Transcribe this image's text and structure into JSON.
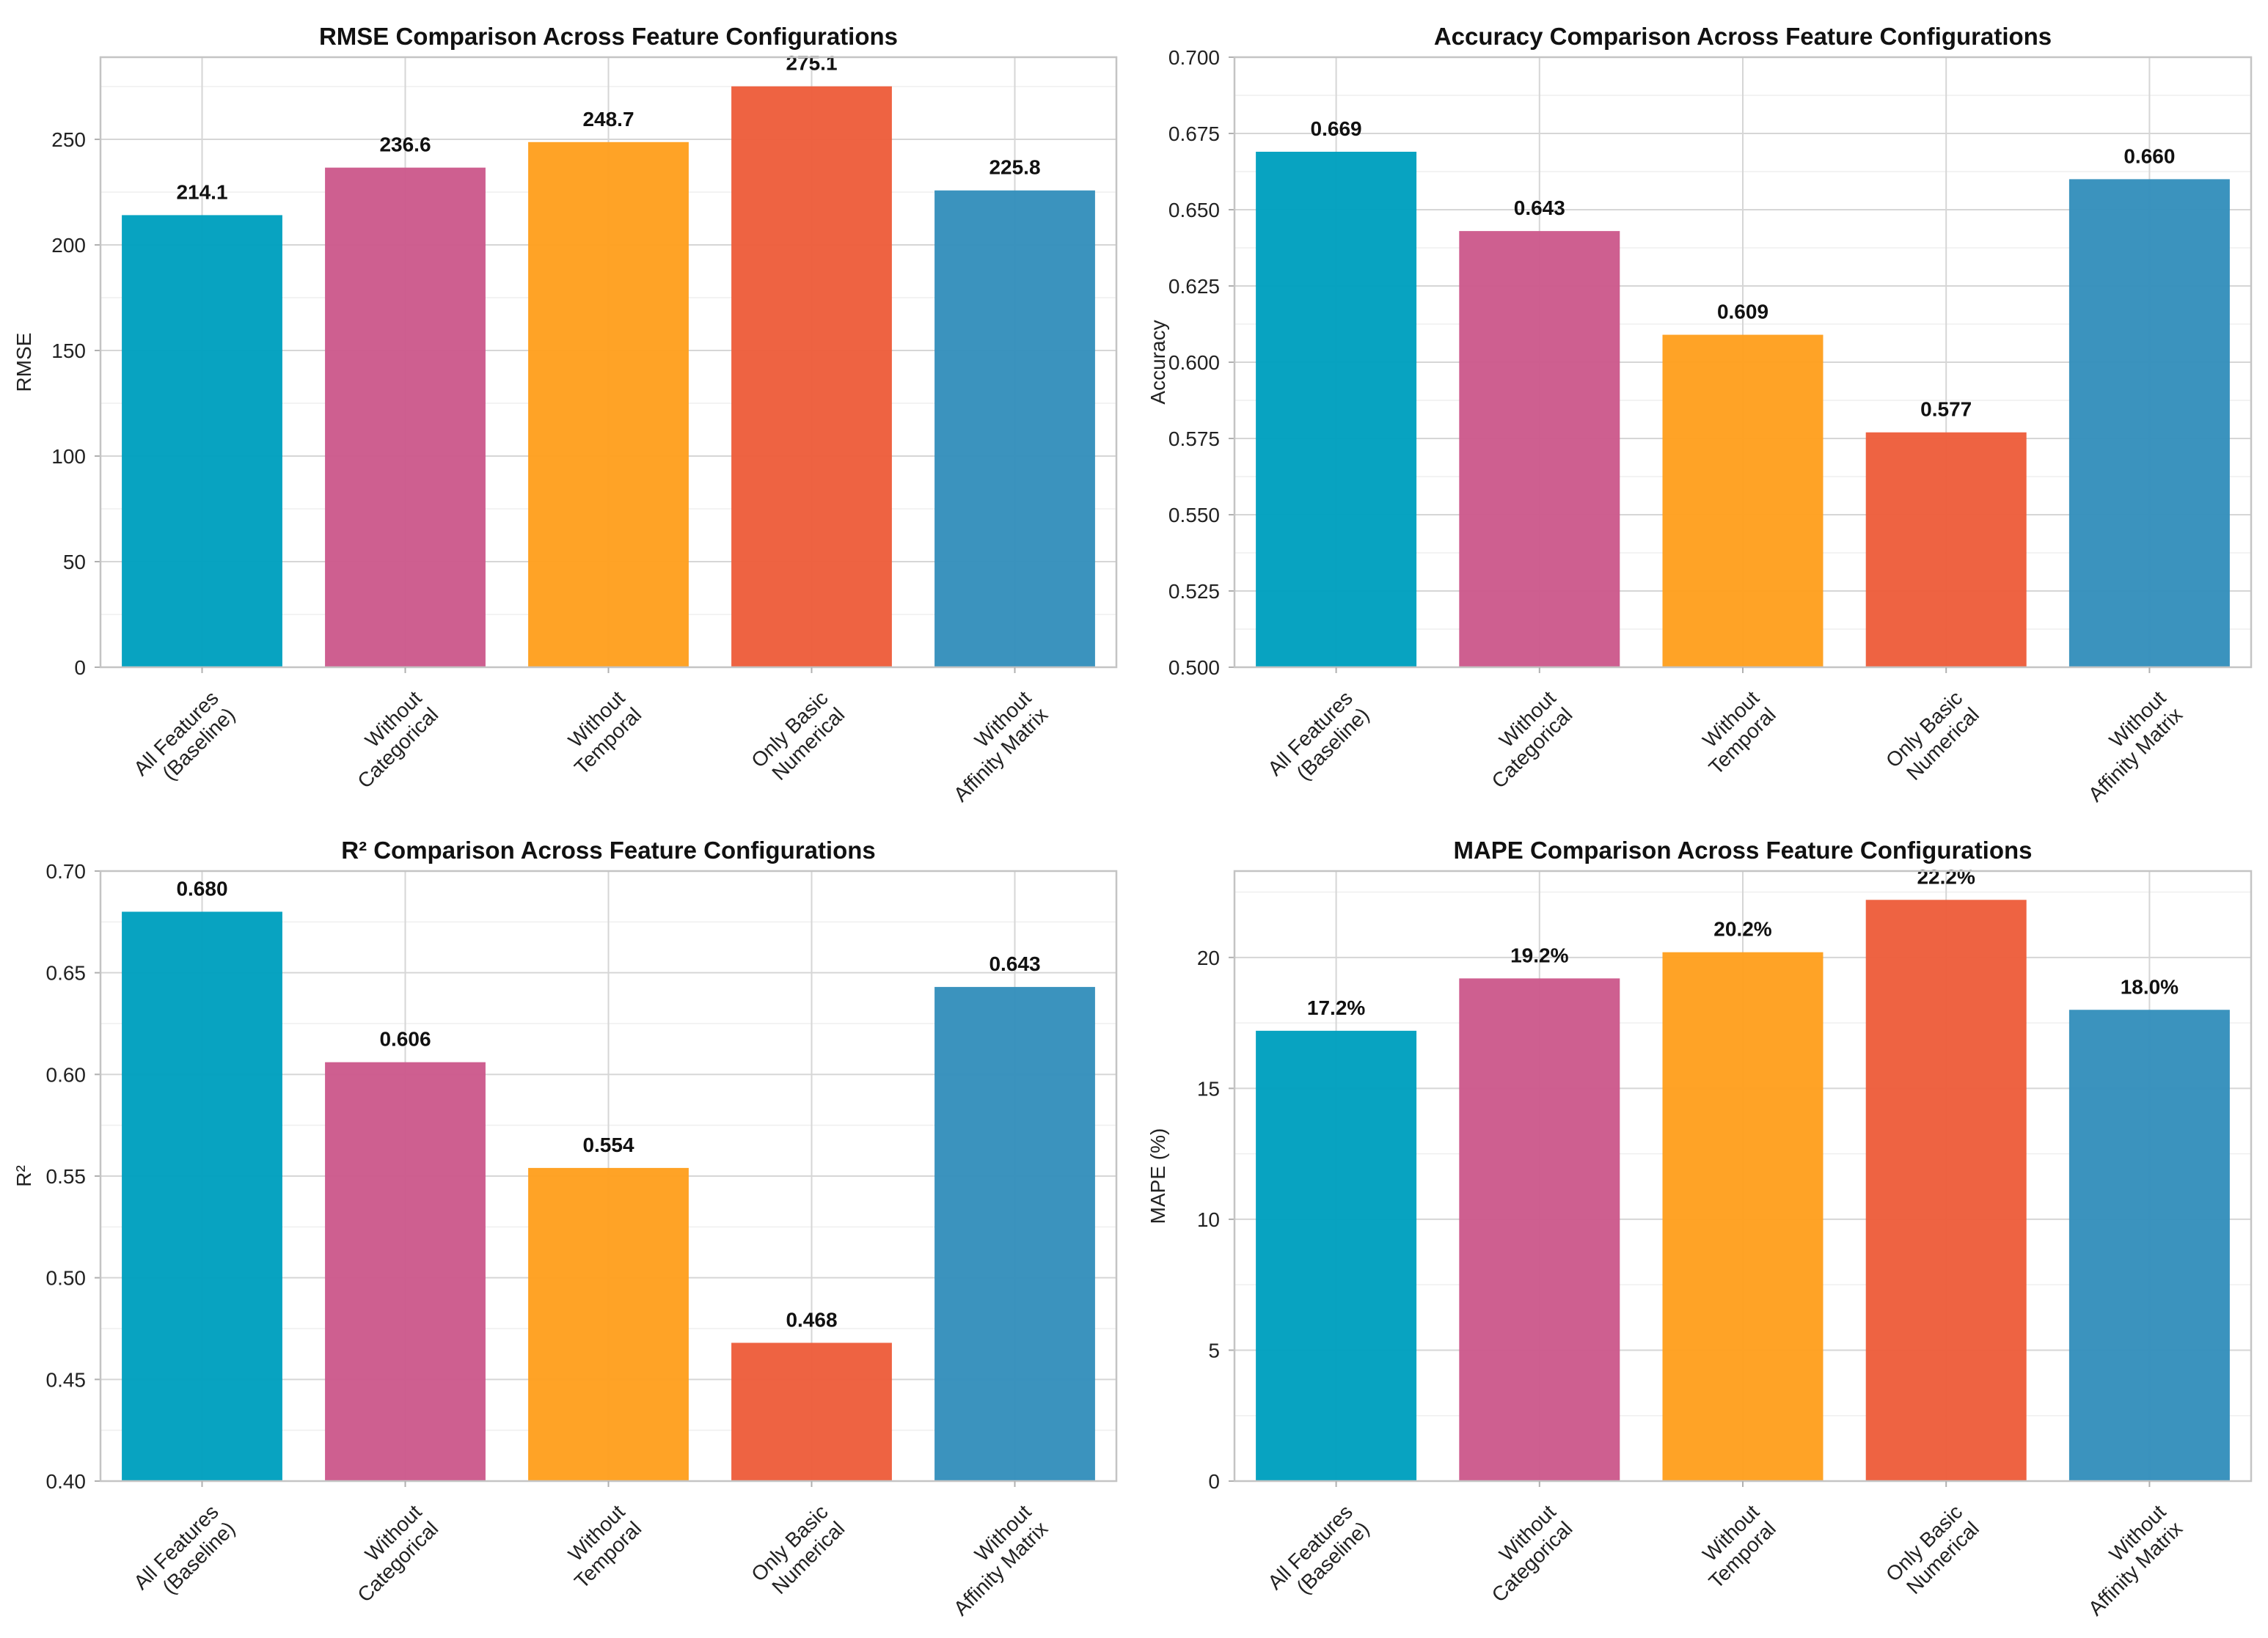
{
  "figure": {
    "categories": [
      [
        "All Features",
        "(Baseline)"
      ],
      [
        "Without",
        "Categorical"
      ],
      [
        "Without",
        "Temporal"
      ],
      [
        "Only Basic",
        "Numerical"
      ],
      [
        "Without",
        "Affinity Matrix"
      ]
    ],
    "bar_colors": [
      "#00a0bf",
      "#cc5a8c",
      "#ffa01f",
      "#ed5e3c",
      "#3590bc"
    ]
  },
  "chart_data": [
    {
      "type": "bar",
      "title": "RMSE Comparison Across Feature Configurations",
      "xlabel": "",
      "ylabel": "RMSE",
      "categories": [
        "All Features (Baseline)",
        "Without Categorical",
        "Without Temporal",
        "Only Basic Numerical",
        "Without Affinity Matrix"
      ],
      "values": [
        214.1,
        236.6,
        248.7,
        275.1,
        225.8
      ],
      "value_labels": [
        "214.1",
        "236.6",
        "248.7",
        "275.1",
        "225.8"
      ],
      "ylim": [
        0,
        288.9
      ],
      "yticks": [
        0,
        50,
        100,
        150,
        200,
        250
      ],
      "ytick_labels": [
        "0",
        "50",
        "100",
        "150",
        "200",
        "250"
      ]
    },
    {
      "type": "bar",
      "title": "Accuracy Comparison Across Feature Configurations",
      "xlabel": "",
      "ylabel": "Accuracy",
      "categories": [
        "All Features (Baseline)",
        "Without Categorical",
        "Without Temporal",
        "Only Basic Numerical",
        "Without Affinity Matrix"
      ],
      "values": [
        0.669,
        0.643,
        0.609,
        0.577,
        0.66
      ],
      "value_labels": [
        "0.669",
        "0.643",
        "0.609",
        "0.577",
        "0.660"
      ],
      "ylim": [
        0.5,
        0.7
      ],
      "yticks": [
        0.5,
        0.525,
        0.55,
        0.575,
        0.6,
        0.625,
        0.65,
        0.675,
        0.7
      ],
      "ytick_labels": [
        "0.500",
        "0.525",
        "0.550",
        "0.575",
        "0.600",
        "0.625",
        "0.650",
        "0.675",
        "0.700"
      ]
    },
    {
      "type": "bar",
      "title": "R² Comparison Across Feature Configurations",
      "xlabel": "",
      "ylabel": "R²",
      "categories": [
        "All Features (Baseline)",
        "Without Categorical",
        "Without Temporal",
        "Only Basic Numerical",
        "Without Affinity Matrix"
      ],
      "values": [
        0.68,
        0.606,
        0.554,
        0.468,
        0.643
      ],
      "value_labels": [
        "0.680",
        "0.606",
        "0.554",
        "0.468",
        "0.643"
      ],
      "ylim": [
        0.4,
        0.7
      ],
      "yticks": [
        0.4,
        0.45,
        0.5,
        0.55,
        0.6,
        0.65,
        0.7
      ],
      "ytick_labels": [
        "0.40",
        "0.45",
        "0.50",
        "0.55",
        "0.60",
        "0.65",
        "0.70"
      ]
    },
    {
      "type": "bar",
      "title": "MAPE Comparison Across Feature Configurations",
      "xlabel": "",
      "ylabel": "MAPE (%)",
      "categories": [
        "All Features (Baseline)",
        "Without Categorical",
        "Without Temporal",
        "Only Basic Numerical",
        "Without Affinity Matrix"
      ],
      "values": [
        17.2,
        19.2,
        20.2,
        22.2,
        18.0
      ],
      "value_labels": [
        "17.2%",
        "19.2%",
        "20.2%",
        "22.2%",
        "18.0%"
      ],
      "ylim": [
        0,
        23.3
      ],
      "yticks": [
        0,
        5,
        10,
        15,
        20
      ],
      "ytick_labels": [
        "0",
        "5",
        "10",
        "15",
        "20"
      ]
    }
  ]
}
